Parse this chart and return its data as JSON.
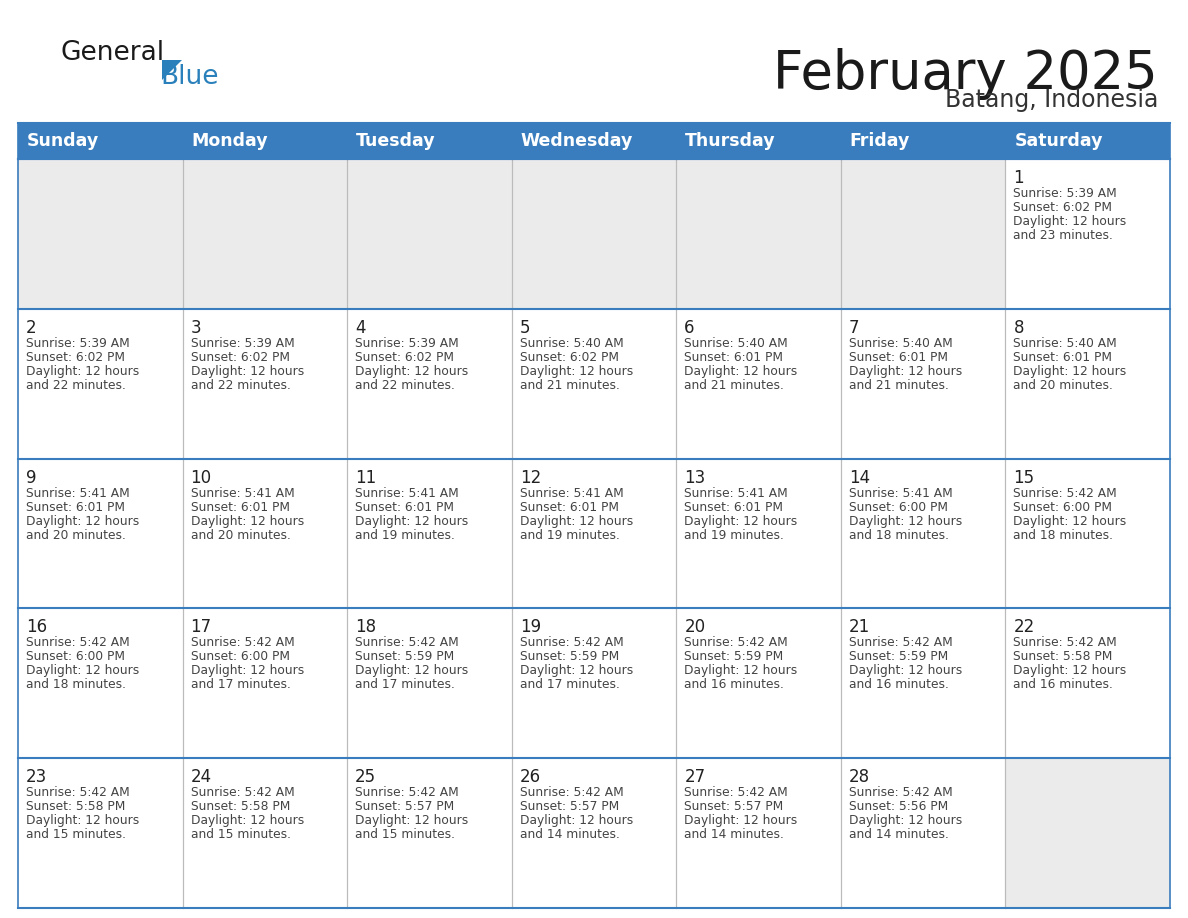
{
  "title": "February 2025",
  "subtitle": "Batang, Indonesia",
  "header_bg": "#3A7DBE",
  "header_text_color": "#FFFFFF",
  "cell_bg_light": "#EBEBEB",
  "cell_bg_white": "#FFFFFF",
  "border_color": "#3A7DBE",
  "row_divider_color": "#3A7DBE",
  "text_color_dark": "#333333",
  "text_color_small": "#444444",
  "days_of_week": [
    "Sunday",
    "Monday",
    "Tuesday",
    "Wednesday",
    "Thursday",
    "Friday",
    "Saturday"
  ],
  "logo_general_color": "#1A1A1A",
  "logo_blue_color": "#2980BA",
  "calendar_data": [
    [
      null,
      null,
      null,
      null,
      null,
      null,
      {
        "day": 1,
        "sunrise": "5:39 AM",
        "sunset": "6:02 PM",
        "daylight": "12 hours",
        "daylight2": "and 23 minutes."
      }
    ],
    [
      {
        "day": 2,
        "sunrise": "5:39 AM",
        "sunset": "6:02 PM",
        "daylight": "12 hours",
        "daylight2": "and 22 minutes."
      },
      {
        "day": 3,
        "sunrise": "5:39 AM",
        "sunset": "6:02 PM",
        "daylight": "12 hours",
        "daylight2": "and 22 minutes."
      },
      {
        "day": 4,
        "sunrise": "5:39 AM",
        "sunset": "6:02 PM",
        "daylight": "12 hours",
        "daylight2": "and 22 minutes."
      },
      {
        "day": 5,
        "sunrise": "5:40 AM",
        "sunset": "6:02 PM",
        "daylight": "12 hours",
        "daylight2": "and 21 minutes."
      },
      {
        "day": 6,
        "sunrise": "5:40 AM",
        "sunset": "6:01 PM",
        "daylight": "12 hours",
        "daylight2": "and 21 minutes."
      },
      {
        "day": 7,
        "sunrise": "5:40 AM",
        "sunset": "6:01 PM",
        "daylight": "12 hours",
        "daylight2": "and 21 minutes."
      },
      {
        "day": 8,
        "sunrise": "5:40 AM",
        "sunset": "6:01 PM",
        "daylight": "12 hours",
        "daylight2": "and 20 minutes."
      }
    ],
    [
      {
        "day": 9,
        "sunrise": "5:41 AM",
        "sunset": "6:01 PM",
        "daylight": "12 hours",
        "daylight2": "and 20 minutes."
      },
      {
        "day": 10,
        "sunrise": "5:41 AM",
        "sunset": "6:01 PM",
        "daylight": "12 hours",
        "daylight2": "and 20 minutes."
      },
      {
        "day": 11,
        "sunrise": "5:41 AM",
        "sunset": "6:01 PM",
        "daylight": "12 hours",
        "daylight2": "and 19 minutes."
      },
      {
        "day": 12,
        "sunrise": "5:41 AM",
        "sunset": "6:01 PM",
        "daylight": "12 hours",
        "daylight2": "and 19 minutes."
      },
      {
        "day": 13,
        "sunrise": "5:41 AM",
        "sunset": "6:01 PM",
        "daylight": "12 hours",
        "daylight2": "and 19 minutes."
      },
      {
        "day": 14,
        "sunrise": "5:41 AM",
        "sunset": "6:00 PM",
        "daylight": "12 hours",
        "daylight2": "and 18 minutes."
      },
      {
        "day": 15,
        "sunrise": "5:42 AM",
        "sunset": "6:00 PM",
        "daylight": "12 hours",
        "daylight2": "and 18 minutes."
      }
    ],
    [
      {
        "day": 16,
        "sunrise": "5:42 AM",
        "sunset": "6:00 PM",
        "daylight": "12 hours",
        "daylight2": "and 18 minutes."
      },
      {
        "day": 17,
        "sunrise": "5:42 AM",
        "sunset": "6:00 PM",
        "daylight": "12 hours",
        "daylight2": "and 17 minutes."
      },
      {
        "day": 18,
        "sunrise": "5:42 AM",
        "sunset": "5:59 PM",
        "daylight": "12 hours",
        "daylight2": "and 17 minutes."
      },
      {
        "day": 19,
        "sunrise": "5:42 AM",
        "sunset": "5:59 PM",
        "daylight": "12 hours",
        "daylight2": "and 17 minutes."
      },
      {
        "day": 20,
        "sunrise": "5:42 AM",
        "sunset": "5:59 PM",
        "daylight": "12 hours",
        "daylight2": "and 16 minutes."
      },
      {
        "day": 21,
        "sunrise": "5:42 AM",
        "sunset": "5:59 PM",
        "daylight": "12 hours",
        "daylight2": "and 16 minutes."
      },
      {
        "day": 22,
        "sunrise": "5:42 AM",
        "sunset": "5:58 PM",
        "daylight": "12 hours",
        "daylight2": "and 16 minutes."
      }
    ],
    [
      {
        "day": 23,
        "sunrise": "5:42 AM",
        "sunset": "5:58 PM",
        "daylight": "12 hours",
        "daylight2": "and 15 minutes."
      },
      {
        "day": 24,
        "sunrise": "5:42 AM",
        "sunset": "5:58 PM",
        "daylight": "12 hours",
        "daylight2": "and 15 minutes."
      },
      {
        "day": 25,
        "sunrise": "5:42 AM",
        "sunset": "5:57 PM",
        "daylight": "12 hours",
        "daylight2": "and 15 minutes."
      },
      {
        "day": 26,
        "sunrise": "5:42 AM",
        "sunset": "5:57 PM",
        "daylight": "12 hours",
        "daylight2": "and 14 minutes."
      },
      {
        "day": 27,
        "sunrise": "5:42 AM",
        "sunset": "5:57 PM",
        "daylight": "12 hours",
        "daylight2": "and 14 minutes."
      },
      {
        "day": 28,
        "sunrise": "5:42 AM",
        "sunset": "5:56 PM",
        "daylight": "12 hours",
        "daylight2": "and 14 minutes."
      },
      null
    ]
  ]
}
